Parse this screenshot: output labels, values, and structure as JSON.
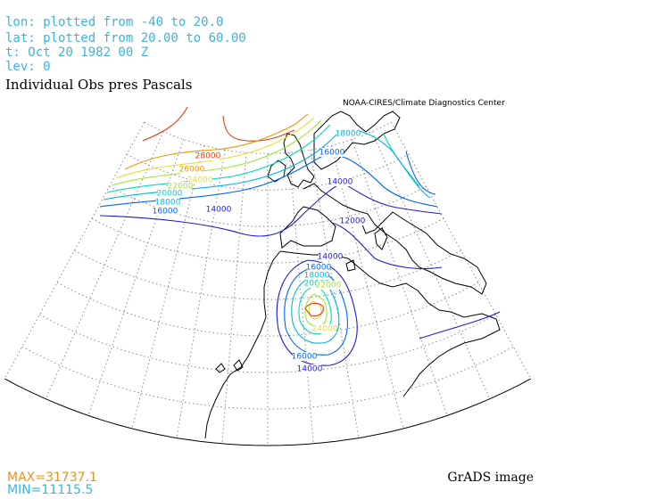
{
  "header": {
    "lines": [
      "lon: plotted from -40 to 20.0",
      "lat: plotted from 20.00 to 60.00",
      "t: Oct 20 1982 00 Z",
      "lev: 0"
    ],
    "title": "Individual Obs pres Pascals",
    "credit": "NOAA-CIRES/Climate Diagnostics Center"
  },
  "contour_labels": [
    {
      "label": "28000",
      "color": "#e03c10"
    },
    {
      "label": "26000",
      "color": "#f09600"
    },
    {
      "label": "24000",
      "color": "#e6dc32"
    },
    {
      "label": "22000",
      "color": "#a0e632"
    },
    {
      "label": "20000",
      "color": "#00dcb4"
    },
    {
      "label": "18000",
      "color": "#00b4e6"
    },
    {
      "label": "16000",
      "color": "#0064ff"
    },
    {
      "label": "14000",
      "color": "#1e1ed2"
    },
    {
      "label": "18000",
      "color": "#00b4e6"
    },
    {
      "label": "16000",
      "color": "#0064ff"
    },
    {
      "label": "14000",
      "color": "#1e1ed2"
    },
    {
      "label": "12000",
      "color": "#1e1ed2"
    },
    {
      "label": "14000",
      "color": "#1e1ed2"
    },
    {
      "label": "16000",
      "color": "#0064ff"
    },
    {
      "label": "18000",
      "color": "#00b4e6"
    },
    {
      "label": "20000",
      "color": "#00dcb4"
    },
    {
      "label": "22000",
      "color": "#a0e632"
    },
    {
      "label": "24000",
      "color": "#e6dc32"
    },
    {
      "label": "16000",
      "color": "#0064ff"
    },
    {
      "label": "14000",
      "color": "#1e1ed2"
    }
  ],
  "footer": {
    "max": "MAX=31737.1",
    "min": "MIN=11115.5",
    "brand": "GrADS image"
  }
}
